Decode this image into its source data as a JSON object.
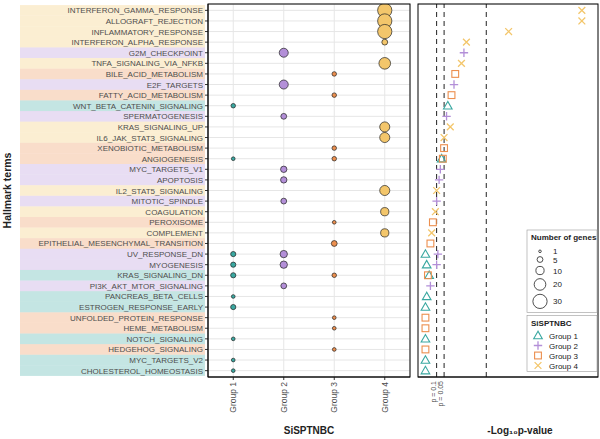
{
  "chart_data": {
    "type": "dot_plot",
    "y_label": "Hallmark terms",
    "group_axis_label": "SiSPTNBC",
    "x_label": "-Log₁₀p-value",
    "categories": [
      "INTERFERON_GAMMA_RESPONSE",
      "ALLOGRAFT_REJECTION",
      "INFLAMMATORY_RESPONSE",
      "INTERFERON_ALPHA_RESPONSE",
      "G2M_CHECKPOINT",
      "TNFA_SIGNALING_VIA_NFKB",
      "BILE_ACID_METABOLISM",
      "E2F_TARGETS",
      "FATTY_ACID_METABOLISM",
      "WNT_BETA_CATENIN_SIGNALING",
      "SPERMATOGENESIS",
      "KRAS_SIGNALING_UP",
      "IL6_JAK_STAT3_SIGNALING",
      "XENOBIOTIC_METABOLISM",
      "ANGIOGENESIS",
      "MYC_TARGETS_V1",
      "APOPTOSIS",
      "IL2_STAT5_SIGNALING",
      "MITOTIC_SPINDLE",
      "COAGULATION",
      "PEROXISOME",
      "COMPLEMENT",
      "EPITHELIAL_MESENCHYMAL_TRANSITION",
      "UV_RESPONSE_DN",
      "MYOGENESIS",
      "KRAS_SIGNALING_DN",
      "PI3K_AKT_MTOR_SIGNALING",
      "PANCREAS_BETA_CELLS",
      "ESTROGEN_RESPONSE_EARLY",
      "UNFOLDED_PROTEIN_RESPONSE",
      "HEME_METABOLISM",
      "NOTCH_SIGNALING",
      "HEDGEHOG_SIGNALING",
      "MYC_TARGETS_V2",
      "CHOLESTEROL_HOMEOSTASIS"
    ],
    "series": [
      {
        "name": "Group 1",
        "color": "#3aa8a1",
        "marker": "triangle",
        "genes": [
          null,
          null,
          null,
          null,
          null,
          null,
          null,
          null,
          null,
          3,
          null,
          null,
          null,
          null,
          2,
          null,
          null,
          null,
          null,
          null,
          null,
          null,
          null,
          4,
          4,
          4,
          null,
          2,
          4,
          null,
          null,
          2,
          null,
          2,
          2
        ],
        "neg_log10_p": [
          null,
          null,
          null,
          null,
          null,
          null,
          null,
          null,
          null,
          1.45,
          null,
          null,
          null,
          null,
          1.2,
          null,
          null,
          null,
          null,
          null,
          null,
          null,
          null,
          0.55,
          0.6,
          0.7,
          null,
          0.6,
          0.55,
          null,
          null,
          0.55,
          null,
          0.55,
          0.55
        ]
      },
      {
        "name": "Group 2",
        "color": "#b38fd8",
        "marker": "plus",
        "genes": [
          null,
          null,
          null,
          null,
          12,
          null,
          null,
          12,
          null,
          null,
          5,
          null,
          null,
          null,
          null,
          6,
          6,
          null,
          5,
          null,
          null,
          null,
          null,
          8,
          8,
          null,
          5,
          null,
          null,
          null,
          null,
          null,
          null,
          null,
          null
        ],
        "neg_log10_p": [
          null,
          null,
          null,
          null,
          2.1,
          null,
          null,
          1.7,
          null,
          null,
          1.4,
          null,
          null,
          null,
          null,
          1.15,
          1.1,
          null,
          1.0,
          null,
          null,
          null,
          null,
          1.05,
          1.0,
          null,
          0.75,
          null,
          null,
          null,
          null,
          null,
          null,
          null,
          null
        ]
      },
      {
        "name": "Group 3",
        "color": "#ec8f4e",
        "marker": "square",
        "genes": [
          null,
          null,
          null,
          null,
          null,
          null,
          3,
          null,
          3,
          null,
          null,
          null,
          null,
          3,
          3,
          null,
          null,
          null,
          null,
          null,
          2,
          null,
          5,
          null,
          null,
          3,
          null,
          null,
          null,
          2,
          2,
          null,
          2,
          null,
          null
        ],
        "neg_log10_p": [
          null,
          null,
          null,
          null,
          null,
          null,
          1.75,
          null,
          1.6,
          null,
          null,
          null,
          null,
          1.3,
          1.25,
          null,
          null,
          null,
          null,
          null,
          0.85,
          null,
          0.75,
          null,
          null,
          0.65,
          null,
          null,
          null,
          0.55,
          0.55,
          null,
          0.55,
          null,
          null
        ]
      },
      {
        "name": "Group 4",
        "color": "#f3c66b",
        "marker": "x",
        "genes": [
          30,
          30,
          30,
          5,
          null,
          20,
          null,
          null,
          null,
          null,
          null,
          15,
          15,
          null,
          null,
          null,
          null,
          15,
          null,
          10,
          null,
          10,
          null,
          null,
          null,
          null,
          null,
          null,
          null,
          null,
          null,
          null,
          null,
          null,
          null
        ],
        "neg_log10_p": [
          6.85,
          6.85,
          3.9,
          2.2,
          null,
          2.0,
          null,
          null,
          null,
          null,
          null,
          1.55,
          1.3,
          null,
          null,
          null,
          null,
          1.0,
          null,
          0.95,
          null,
          0.8,
          null,
          null,
          null,
          null,
          null,
          null,
          null,
          null,
          null,
          null,
          null,
          null,
          null
        ]
      }
    ],
    "xlim": [
      0.25,
      7.5
    ],
    "reference_lines": [
      {
        "value": 1,
        "label": "p = 0.1"
      },
      {
        "value": 1.30103,
        "label": "p = 0.05"
      },
      {
        "value": 3
      }
    ],
    "size_legend": {
      "title": "Number of genes",
      "values": [
        1,
        5,
        10,
        20,
        30
      ]
    },
    "legend_title": "SiSPTNBC",
    "legend": "right",
    "grid": true
  }
}
